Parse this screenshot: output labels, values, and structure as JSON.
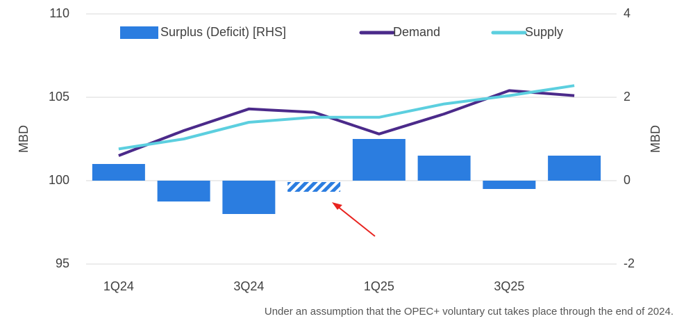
{
  "chart_data": {
    "type": "bar_line",
    "categories": [
      "1Q24",
      null,
      "3Q24",
      null,
      "1Q25",
      null,
      "3Q25",
      null
    ],
    "series": [
      {
        "name": "Surplus (Deficit) [RHS]",
        "type": "bar",
        "axis": "y2",
        "color": "#2b7de0",
        "values": [
          0.4,
          -0.5,
          -0.8,
          -0.3,
          1.0,
          0.6,
          -0.2,
          0.6
        ],
        "hatched": [
          false,
          false,
          false,
          true,
          false,
          false,
          false,
          false
        ]
      },
      {
        "name": "Demand",
        "type": "line",
        "color": "#4b2a8a",
        "values": [
          101.5,
          103.0,
          104.3,
          104.1,
          102.8,
          104.0,
          105.4,
          105.1
        ]
      },
      {
        "name": "Supply",
        "type": "line",
        "color": "#5ccfdf",
        "values": [
          101.9,
          102.5,
          103.5,
          103.8,
          103.8,
          104.6,
          105.1,
          105.7
        ]
      }
    ],
    "ylabel": "MBD",
    "y2label": "MBD",
    "ylim": [
      95,
      110
    ],
    "yticks": [
      95,
      100,
      105,
      110
    ],
    "y2lim": [
      -2,
      4
    ],
    "y2ticks": [
      -2,
      0,
      2,
      4
    ],
    "grid": true,
    "legend": "top",
    "annotation": "Under an assumption that the OPEC+ voluntary cut takes place through the end of 2024."
  }
}
